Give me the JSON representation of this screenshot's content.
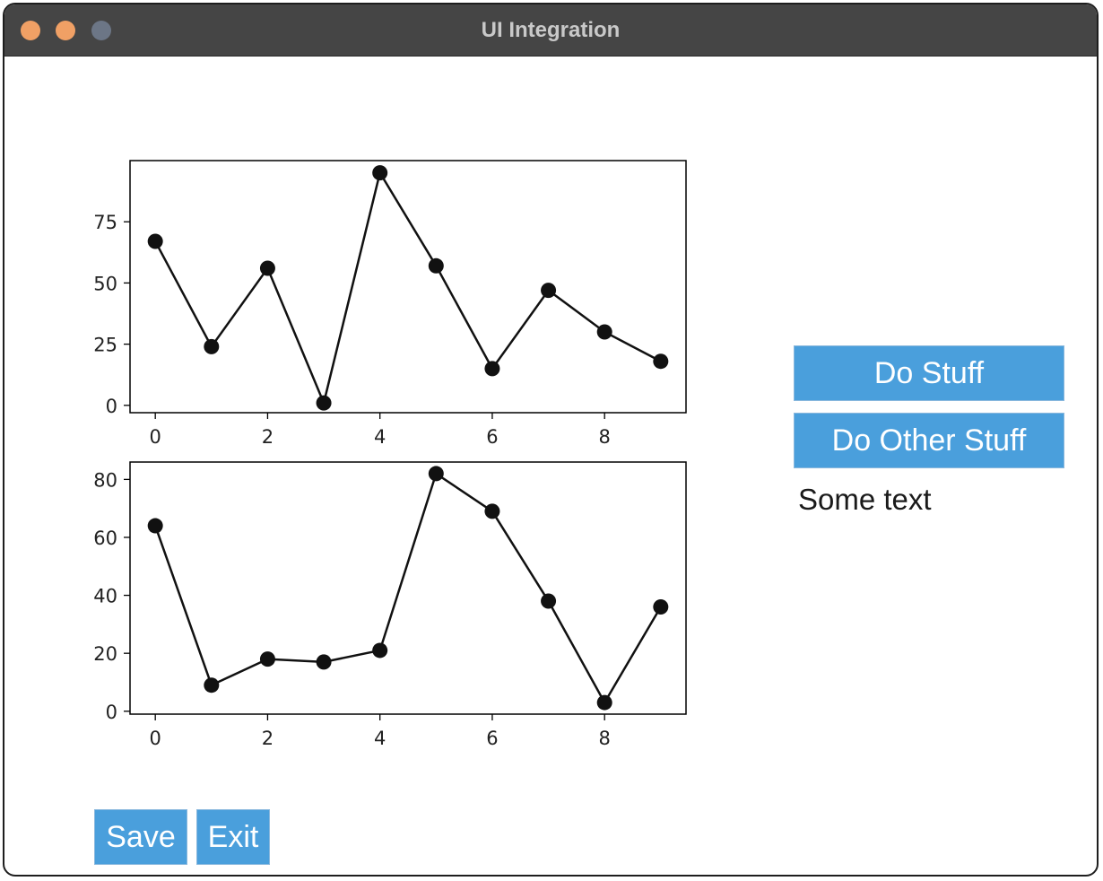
{
  "window": {
    "title": "UI Integration"
  },
  "buttons": {
    "do_stuff": "Do Stuff",
    "do_other_stuff": "Do Other Stuff",
    "save": "Save",
    "exit": "Exit"
  },
  "status_text": "Some text",
  "colors": {
    "button_bg": "#4a9fdc",
    "button_text": "#ffffff",
    "titlebar": "#454545"
  },
  "chart_data": [
    {
      "type": "line",
      "x": [
        0,
        1,
        2,
        3,
        4,
        5,
        6,
        7,
        8,
        9
      ],
      "values": [
        67,
        24,
        56,
        1,
        95,
        57,
        15,
        47,
        30,
        18
      ],
      "xlim": [
        -0.45,
        9.45
      ],
      "ylim": [
        -3,
        100
      ],
      "xticks": [
        0,
        2,
        4,
        6,
        8
      ],
      "yticks": [
        0,
        25,
        50,
        75
      ],
      "marker": "circle",
      "grid": false
    },
    {
      "type": "line",
      "x": [
        0,
        1,
        2,
        3,
        4,
        5,
        6,
        7,
        8,
        9
      ],
      "values": [
        64,
        9,
        18,
        17,
        21,
        82,
        69,
        38,
        3,
        36
      ],
      "xlim": [
        -0.45,
        9.45
      ],
      "ylim": [
        -1,
        86
      ],
      "xticks": [
        0,
        2,
        4,
        6,
        8
      ],
      "yticks": [
        0,
        20,
        40,
        60,
        80
      ],
      "marker": "circle",
      "grid": false
    }
  ]
}
